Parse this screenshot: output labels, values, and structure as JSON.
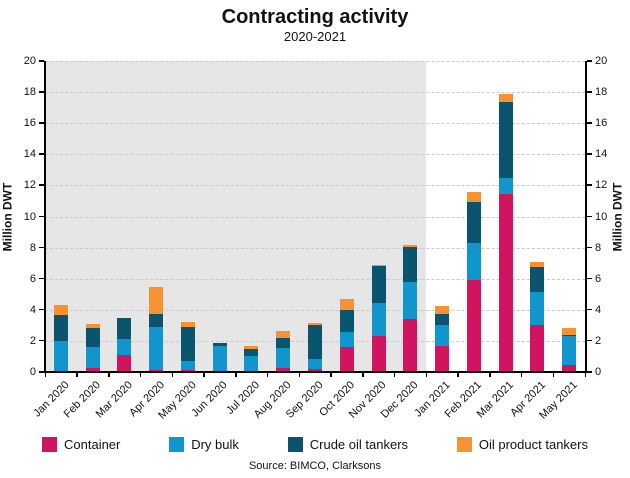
{
  "title": "Contracting activity",
  "subtitle": "2020-2021",
  "source": "Source: BIMCO, Clarksons",
  "y_axis_label_left": "Million DWT",
  "y_axis_label_right": "Million DWT",
  "colors": {
    "container": "#d1145f",
    "dry_bulk": "#1195cd",
    "crude_oil_tankers": "#0a546e",
    "oil_product_tankers": "#f79232",
    "shaded_2020_band": "#e6e6e6",
    "gridline": "#c9c9c9",
    "axis": "#000000"
  },
  "chart_data": {
    "type": "bar",
    "stacked": true,
    "title": "Contracting activity",
    "subtitle": "2020-2021",
    "xlabel": "",
    "ylabel": "Million DWT",
    "ylim": [
      0,
      20
    ],
    "ytick_step": 2,
    "grid": "dashed horizontal",
    "legend_position": "bottom",
    "shaded_region": {
      "from": "Jan 2020",
      "to": "Dec 2020",
      "color": "#e6e6e6"
    },
    "categories": [
      "Jan 2020",
      "Feb 2020",
      "Mar 2020",
      "Apr 2020",
      "May 2020",
      "Jun 2020",
      "Jul 2020",
      "Aug 2020",
      "Sep 2020",
      "Oct 2020",
      "Nov 2020",
      "Dec 2020",
      "Jan 2021",
      "Feb 2021",
      "Mar 2021",
      "Apr 2021",
      "May 2021"
    ],
    "series": [
      {
        "name": "Container",
        "color": "#d1145f",
        "values": [
          0,
          0.25,
          1.1,
          0.15,
          0.15,
          0,
          0,
          0.25,
          0.2,
          1.6,
          2.3,
          3.4,
          1.7,
          5.9,
          11.45,
          3.05,
          0.45
        ]
      },
      {
        "name": "Dry bulk",
        "color": "#1195cd",
        "values": [
          2.0,
          1.35,
          1.0,
          2.75,
          0.55,
          1.7,
          1.05,
          1.3,
          0.65,
          0.95,
          2.15,
          2.4,
          1.35,
          2.4,
          1.05,
          2.1,
          1.85
        ]
      },
      {
        "name": "Crude oil tankers",
        "color": "#0a546e",
        "values": [
          1.65,
          1.2,
          1.4,
          0.8,
          2.2,
          0.15,
          0.4,
          0.65,
          2.15,
          1.45,
          2.35,
          2.25,
          0.7,
          2.65,
          4.85,
          1.6,
          0.05
        ]
      },
      {
        "name": "Oil product tankers",
        "color": "#f79232",
        "values": [
          0.65,
          0.3,
          0,
          1.75,
          0.3,
          0,
          0.2,
          0.45,
          0.15,
          0.7,
          0.1,
          0.1,
          0.5,
          0.65,
          0.55,
          0.35,
          0.45
        ]
      }
    ],
    "totals": [
      4.3,
      3.1,
      3.5,
      5.45,
      3.2,
      1.85,
      1.65,
      2.65,
      3.15,
      4.7,
      6.9,
      8.15,
      4.25,
      11.6,
      17.9,
      7.1,
      2.8
    ]
  }
}
